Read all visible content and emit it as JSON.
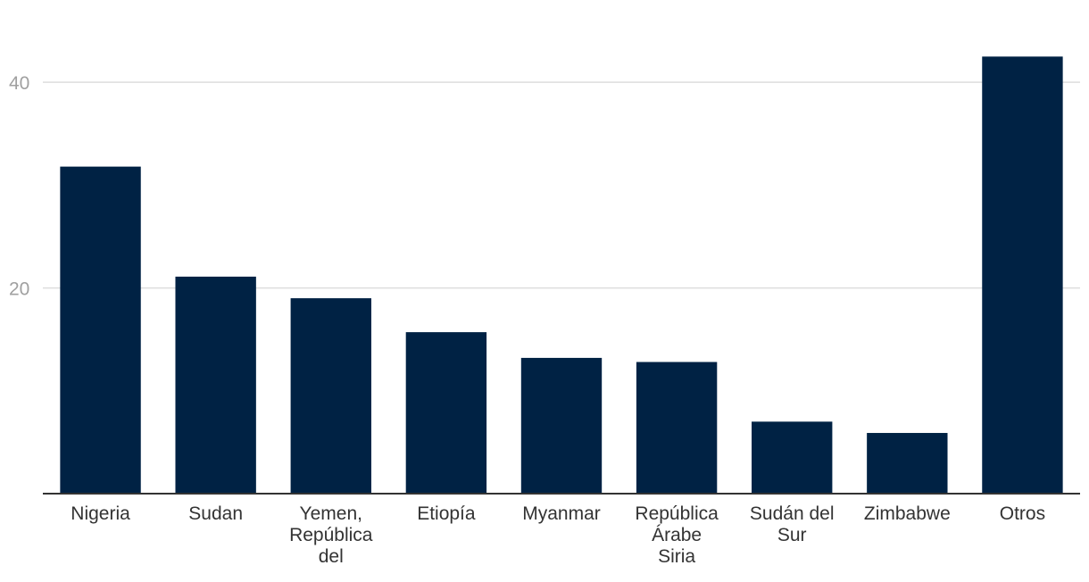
{
  "chart_data": {
    "type": "bar",
    "title": "",
    "xlabel": "",
    "ylabel": "",
    "categories": [
      [
        "Nigeria"
      ],
      [
        "Sudan"
      ],
      [
        "Yemen,",
        "República",
        "del"
      ],
      [
        "Etiopía"
      ],
      [
        "Myanmar"
      ],
      [
        "República",
        "Árabe",
        "Siria"
      ],
      [
        "Sudán del",
        "Sur"
      ],
      [
        "Zimbabwe"
      ],
      [
        "Otros"
      ]
    ],
    "values": [
      31.8,
      21.1,
      19.0,
      15.7,
      13.2,
      12.8,
      7.0,
      5.9,
      42.5
    ],
    "ylim": [
      0,
      48
    ],
    "yticks": [
      {
        "value": 20,
        "label": "20"
      },
      {
        "value": 40,
        "label": "40"
      }
    ],
    "grid": true,
    "legend": "none",
    "colors": {
      "bar": "#002244",
      "grid": "#dddddd",
      "axis": "#333333",
      "tick_text": "#a0a0a0",
      "category_text": "#333333"
    }
  }
}
